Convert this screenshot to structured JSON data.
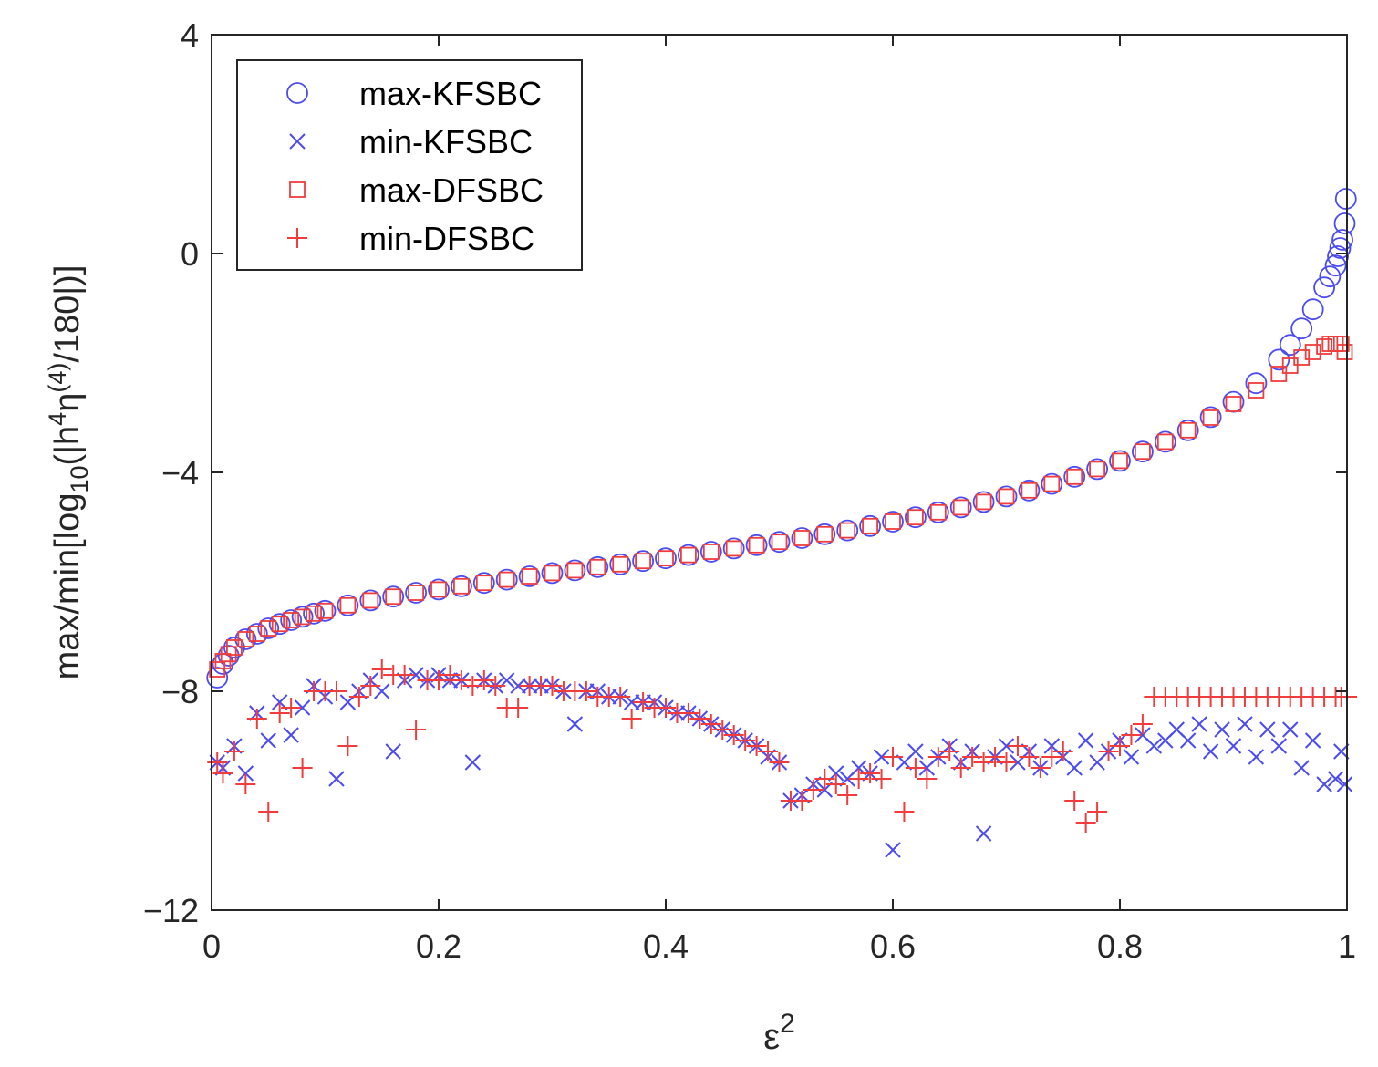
{
  "chart_data": {
    "type": "scatter",
    "title": "",
    "xlabel": {
      "base": "ε",
      "sup": "2"
    },
    "ylabel": {
      "prefix": "max/min[log",
      "sub": "10",
      "middle": "(|h",
      "sup1": "4",
      "eta": "η",
      "sup2": "(4)",
      "suffix": "/180|)]"
    },
    "xlim": [
      0,
      1
    ],
    "ylim": [
      -12,
      4
    ],
    "xticks": [
      0,
      0.2,
      0.4,
      0.6,
      0.8,
      1
    ],
    "xtick_labels": [
      "0",
      "0.2",
      "0.4",
      "0.6",
      "0.8",
      "1"
    ],
    "yticks": [
      -12,
      -8,
      -4,
      0,
      4
    ],
    "ytick_labels": [
      "−12",
      "−8",
      "−4",
      "0",
      "4"
    ],
    "grid": false,
    "legend_position": "top-left",
    "colors": {
      "blue": "#4b4bf0",
      "red": "#f03c3c",
      "axis": "#262626"
    },
    "series": [
      {
        "name": "max-KFSBC",
        "marker": "circle",
        "color": "#4b4bf0",
        "x": [
          0.005,
          0.01,
          0.015,
          0.02,
          0.03,
          0.04,
          0.05,
          0.06,
          0.07,
          0.08,
          0.09,
          0.1,
          0.12,
          0.14,
          0.16,
          0.18,
          0.2,
          0.22,
          0.24,
          0.26,
          0.28,
          0.3,
          0.32,
          0.34,
          0.36,
          0.38,
          0.4,
          0.42,
          0.44,
          0.46,
          0.48,
          0.5,
          0.52,
          0.54,
          0.56,
          0.58,
          0.6,
          0.62,
          0.64,
          0.66,
          0.68,
          0.7,
          0.72,
          0.74,
          0.76,
          0.78,
          0.8,
          0.82,
          0.84,
          0.86,
          0.88,
          0.9,
          0.92,
          0.94,
          0.95,
          0.96,
          0.97,
          0.98,
          0.985,
          0.99,
          0.992,
          0.994,
          0.996,
          0.998,
          0.999
        ],
        "y": [
          -7.75,
          -7.5,
          -7.35,
          -7.2,
          -7.05,
          -6.95,
          -6.85,
          -6.77,
          -6.7,
          -6.64,
          -6.58,
          -6.53,
          -6.43,
          -6.34,
          -6.27,
          -6.2,
          -6.14,
          -6.08,
          -6.02,
          -5.96,
          -5.9,
          -5.84,
          -5.79,
          -5.73,
          -5.68,
          -5.62,
          -5.57,
          -5.51,
          -5.45,
          -5.39,
          -5.33,
          -5.27,
          -5.2,
          -5.13,
          -5.06,
          -4.98,
          -4.9,
          -4.82,
          -4.73,
          -4.64,
          -4.54,
          -4.44,
          -4.33,
          -4.21,
          -4.08,
          -3.94,
          -3.79,
          -3.62,
          -3.44,
          -3.23,
          -2.99,
          -2.71,
          -2.37,
          -1.94,
          -1.67,
          -1.37,
          -1.02,
          -0.62,
          -0.42,
          -0.22,
          -0.05,
          0.1,
          0.25,
          0.55,
          1.0
        ]
      },
      {
        "name": "min-KFSBC",
        "marker": "x",
        "color": "#4b4bf0",
        "x": [
          0.005,
          0.01,
          0.02,
          0.03,
          0.04,
          0.05,
          0.06,
          0.07,
          0.08,
          0.09,
          0.1,
          0.11,
          0.12,
          0.13,
          0.14,
          0.15,
          0.16,
          0.17,
          0.18,
          0.19,
          0.2,
          0.21,
          0.22,
          0.23,
          0.24,
          0.25,
          0.26,
          0.27,
          0.28,
          0.29,
          0.3,
          0.31,
          0.32,
          0.33,
          0.34,
          0.35,
          0.36,
          0.37,
          0.38,
          0.39,
          0.4,
          0.41,
          0.42,
          0.43,
          0.44,
          0.45,
          0.46,
          0.47,
          0.48,
          0.49,
          0.5,
          0.51,
          0.52,
          0.53,
          0.54,
          0.55,
          0.56,
          0.57,
          0.58,
          0.59,
          0.6,
          0.61,
          0.62,
          0.63,
          0.64,
          0.65,
          0.66,
          0.67,
          0.68,
          0.69,
          0.7,
          0.71,
          0.72,
          0.73,
          0.74,
          0.75,
          0.76,
          0.77,
          0.78,
          0.79,
          0.8,
          0.81,
          0.82,
          0.83,
          0.84,
          0.85,
          0.86,
          0.87,
          0.88,
          0.89,
          0.9,
          0.91,
          0.92,
          0.93,
          0.94,
          0.95,
          0.96,
          0.97,
          0.98,
          0.99,
          0.995,
          0.998
        ],
        "y": [
          -9.3,
          -9.4,
          -9.0,
          -9.5,
          -8.4,
          -8.9,
          -8.2,
          -8.8,
          -8.3,
          -7.9,
          -8.1,
          -9.6,
          -8.2,
          -8.0,
          -7.8,
          -8.0,
          -9.1,
          -7.8,
          -7.7,
          -7.8,
          -7.7,
          -7.8,
          -7.8,
          -9.3,
          -7.8,
          -7.9,
          -7.8,
          -7.9,
          -7.9,
          -7.9,
          -7.9,
          -8.0,
          -8.6,
          -8.0,
          -8.0,
          -8.1,
          -8.1,
          -8.2,
          -8.2,
          -8.2,
          -8.3,
          -8.4,
          -8.4,
          -8.5,
          -8.6,
          -8.7,
          -8.8,
          -8.9,
          -9.0,
          -9.2,
          -9.3,
          -10.0,
          -9.9,
          -9.7,
          -9.8,
          -9.5,
          -9.6,
          -9.4,
          -9.5,
          -9.2,
          -10.9,
          -9.3,
          -9.1,
          -9.4,
          -9.2,
          -9.0,
          -9.3,
          -9.1,
          -10.6,
          -9.2,
          -9.0,
          -9.3,
          -9.1,
          -9.4,
          -9.0,
          -9.2,
          -9.4,
          -8.9,
          -9.3,
          -9.1,
          -8.9,
          -9.2,
          -8.8,
          -9.0,
          -8.9,
          -8.7,
          -8.9,
          -8.6,
          -9.1,
          -8.7,
          -9.0,
          -8.6,
          -9.2,
          -8.7,
          -9.0,
          -8.7,
          -9.4,
          -8.9,
          -9.7,
          -9.6,
          -9.1,
          -9.7
        ]
      },
      {
        "name": "max-DFSBC",
        "marker": "square",
        "color": "#f03c3c",
        "x": [
          0.005,
          0.01,
          0.015,
          0.02,
          0.03,
          0.04,
          0.05,
          0.06,
          0.07,
          0.08,
          0.09,
          0.1,
          0.12,
          0.14,
          0.16,
          0.18,
          0.2,
          0.22,
          0.24,
          0.26,
          0.28,
          0.3,
          0.32,
          0.34,
          0.36,
          0.38,
          0.4,
          0.42,
          0.44,
          0.46,
          0.48,
          0.5,
          0.52,
          0.54,
          0.56,
          0.58,
          0.6,
          0.62,
          0.64,
          0.66,
          0.68,
          0.7,
          0.72,
          0.74,
          0.76,
          0.78,
          0.8,
          0.82,
          0.84,
          0.86,
          0.88,
          0.9,
          0.92,
          0.94,
          0.95,
          0.96,
          0.97,
          0.98,
          0.985,
          0.99,
          0.995,
          0.998
        ],
        "y": [
          -7.6,
          -7.45,
          -7.32,
          -7.2,
          -7.05,
          -6.95,
          -6.85,
          -6.77,
          -6.7,
          -6.64,
          -6.58,
          -6.53,
          -6.43,
          -6.34,
          -6.27,
          -6.2,
          -6.14,
          -6.08,
          -6.02,
          -5.96,
          -5.9,
          -5.84,
          -5.79,
          -5.73,
          -5.68,
          -5.62,
          -5.57,
          -5.51,
          -5.45,
          -5.39,
          -5.33,
          -5.27,
          -5.2,
          -5.13,
          -5.06,
          -4.98,
          -4.9,
          -4.82,
          -4.73,
          -4.64,
          -4.54,
          -4.44,
          -4.33,
          -4.21,
          -4.08,
          -3.94,
          -3.79,
          -3.62,
          -3.44,
          -3.23,
          -3.0,
          -2.75,
          -2.5,
          -2.2,
          -2.05,
          -1.9,
          -1.8,
          -1.7,
          -1.65,
          -1.65,
          -1.65,
          -1.8
        ]
      },
      {
        "name": "min-DFSBC",
        "marker": "plus",
        "color": "#f03c3c",
        "x": [
          0.005,
          0.01,
          0.02,
          0.03,
          0.04,
          0.05,
          0.06,
          0.07,
          0.08,
          0.09,
          0.1,
          0.11,
          0.12,
          0.13,
          0.14,
          0.15,
          0.16,
          0.17,
          0.18,
          0.19,
          0.2,
          0.21,
          0.22,
          0.23,
          0.24,
          0.25,
          0.26,
          0.27,
          0.28,
          0.29,
          0.3,
          0.31,
          0.32,
          0.33,
          0.34,
          0.35,
          0.36,
          0.37,
          0.38,
          0.39,
          0.4,
          0.41,
          0.42,
          0.43,
          0.44,
          0.45,
          0.46,
          0.47,
          0.48,
          0.49,
          0.5,
          0.51,
          0.52,
          0.53,
          0.54,
          0.55,
          0.56,
          0.57,
          0.58,
          0.59,
          0.6,
          0.61,
          0.62,
          0.63,
          0.64,
          0.65,
          0.66,
          0.67,
          0.68,
          0.69,
          0.7,
          0.71,
          0.72,
          0.73,
          0.74,
          0.75,
          0.76,
          0.77,
          0.78,
          0.79,
          0.8,
          0.81,
          0.82,
          0.83,
          0.84,
          0.85,
          0.86,
          0.87,
          0.88,
          0.89,
          0.9,
          0.91,
          0.92,
          0.93,
          0.94,
          0.95,
          0.96,
          0.97,
          0.98,
          0.99,
          0.995,
          1.0
        ],
        "y": [
          -9.3,
          -9.5,
          -9.1,
          -9.7,
          -8.5,
          -10.2,
          -8.4,
          -8.3,
          -9.4,
          -8.0,
          -8.0,
          -8.0,
          -9.0,
          -8.1,
          -7.9,
          -7.6,
          -7.7,
          -7.7,
          -8.7,
          -7.8,
          -7.8,
          -7.7,
          -7.8,
          -7.9,
          -7.8,
          -7.9,
          -8.3,
          -8.3,
          -7.9,
          -7.9,
          -7.9,
          -8.0,
          -8.0,
          -8.0,
          -8.1,
          -8.1,
          -8.1,
          -8.5,
          -8.2,
          -8.3,
          -8.3,
          -8.4,
          -8.4,
          -8.5,
          -8.6,
          -8.7,
          -8.8,
          -8.9,
          -9.0,
          -9.1,
          -9.3,
          -10.0,
          -10.0,
          -9.8,
          -9.6,
          -9.7,
          -9.9,
          -9.6,
          -9.5,
          -9.6,
          -9.2,
          -10.2,
          -9.4,
          -9.6,
          -9.2,
          -9.1,
          -9.4,
          -9.2,
          -9.3,
          -9.2,
          -9.3,
          -9.0,
          -9.2,
          -9.4,
          -9.2,
          -9.1,
          -10.0,
          -10.4,
          -10.2,
          -9.1,
          -9.0,
          -8.8,
          -8.6,
          -8.1,
          -8.1,
          -8.1,
          -8.1,
          -8.1,
          -8.1,
          -8.1,
          -8.1,
          -8.1,
          -8.1,
          -8.1,
          -8.1,
          -8.1,
          -8.1,
          -8.1,
          -8.1,
          -8.1,
          -8.1,
          -8.1
        ]
      }
    ]
  }
}
